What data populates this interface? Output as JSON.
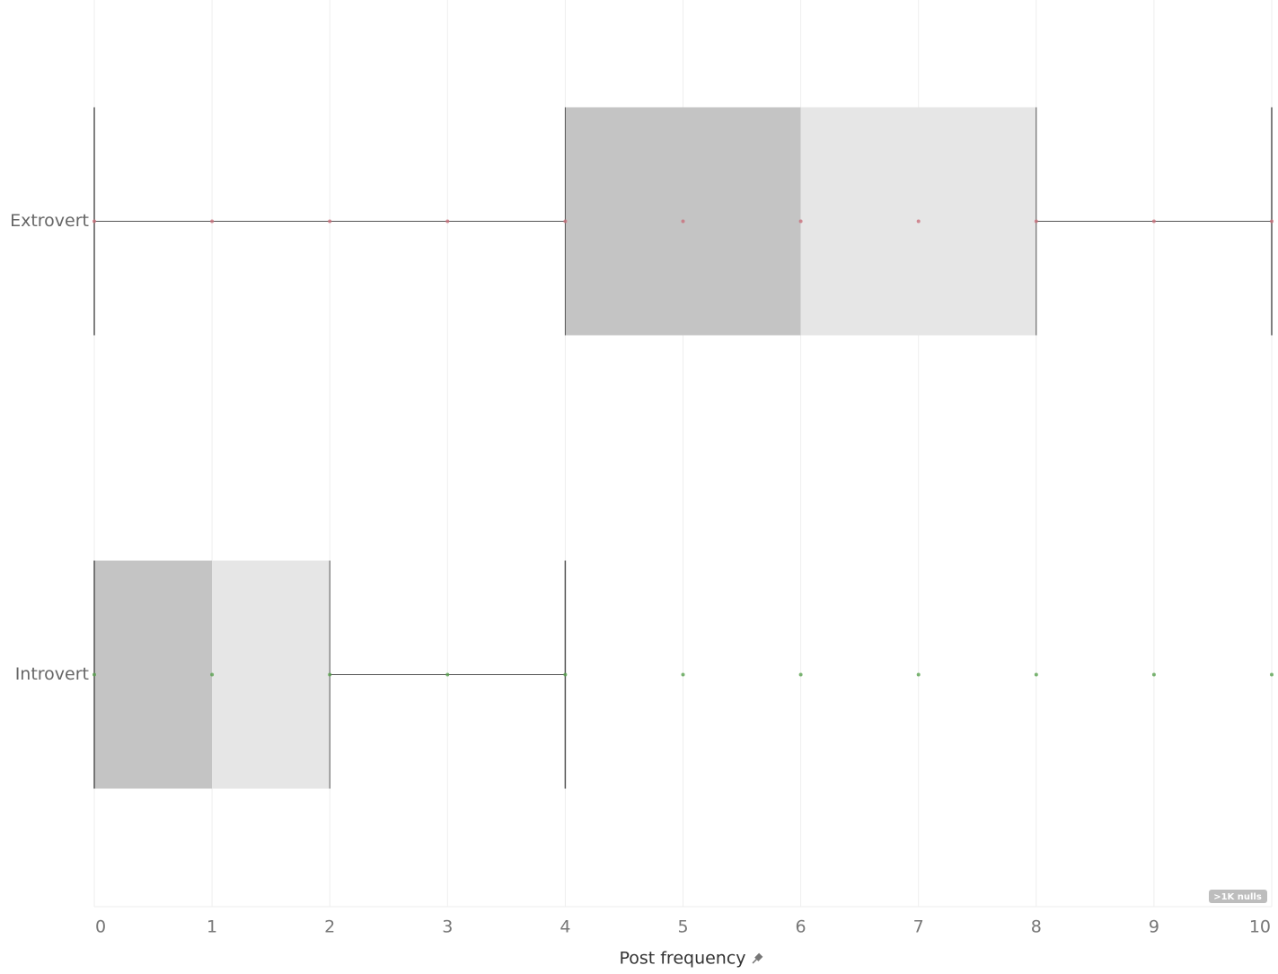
{
  "chart_data": {
    "type": "box",
    "x_label": "Post frequency",
    "categories": [
      "Extrovert",
      "Introvert"
    ],
    "boxes": [
      {
        "min": 0,
        "q1": 4,
        "median": 6,
        "q3": 8,
        "max": 10,
        "points": [
          0,
          1,
          2,
          3,
          4,
          5,
          6,
          7,
          8,
          9,
          10
        ],
        "point_color": "#c9707c"
      },
      {
        "min": 0,
        "q1": 0,
        "median": 1,
        "q3": 2,
        "max": 4,
        "points": [
          0,
          1,
          2,
          3,
          4,
          5,
          6,
          7,
          8,
          9,
          10
        ],
        "point_color": "#59a14f"
      }
    ],
    "box_colors": [
      "#c4c4c4",
      "#e6e6e6"
    ],
    "xlim": [
      0,
      10
    ],
    "xticks": [
      0,
      1,
      2,
      3,
      4,
      5,
      6,
      7,
      8,
      9,
      10
    ],
    "grid": true,
    "nulls_badge": ">1K nulls"
  }
}
